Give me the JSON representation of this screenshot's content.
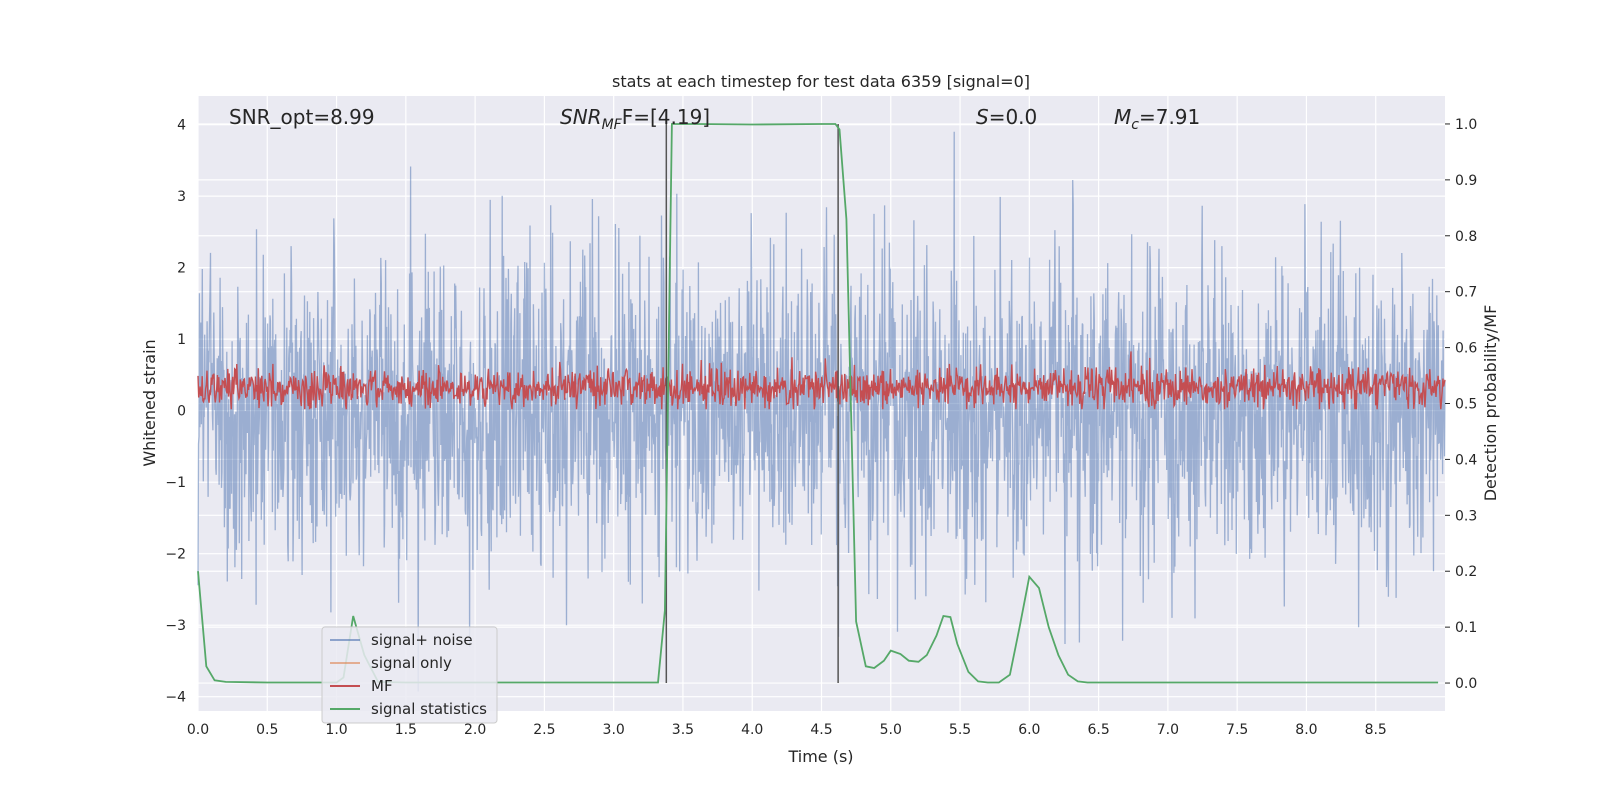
{
  "chart_data": {
    "type": "line",
    "title": "stats at each timestep for test data 6359 [signal=0]",
    "xlabel": "Time (s)",
    "ylabel": "Whitened strain",
    "ylabel_right": "Detection probability/MF",
    "xlim": [
      0.0,
      9.0
    ],
    "ylim": [
      -4.2,
      4.4
    ],
    "ylim_right": [
      -0.05,
      1.05
    ],
    "x_ticks": [
      "0.0",
      "0.5",
      "1.0",
      "1.5",
      "2.0",
      "2.5",
      "3.0",
      "3.5",
      "4.0",
      "4.5",
      "5.0",
      "5.5",
      "6.0",
      "6.5",
      "7.0",
      "7.5",
      "8.0",
      "8.5"
    ],
    "y_ticks": [
      "4",
      "3",
      "2",
      "1",
      "0",
      "−1",
      "−2",
      "−3",
      "−4"
    ],
    "y_ticks_right": [
      "1.0",
      "0.9",
      "0.8",
      "0.7",
      "0.6",
      "0.5",
      "0.4",
      "0.3",
      "0.2",
      "0.1",
      "0.0"
    ],
    "grid": true,
    "legend_position": "lower-left",
    "annotations": {
      "snr_opt": "SNR_opt=8.99",
      "snr_mf_main": "SNR",
      "snr_mf_sub": "MF",
      "snr_mf_rest": "F=[4.19]",
      "s_main": "S",
      "s_rest": "=0.0",
      "mc_main": "M",
      "mc_sub": "c",
      "mc_rest": "=7.91"
    },
    "vertical_markers": [
      3.38,
      4.62
    ],
    "series": [
      {
        "name": "signal+ noise",
        "color": "#4c72b0",
        "note_range": [
          -4.0,
          4.0
        ]
      },
      {
        "name": "signal only",
        "color": "#dd8452"
      },
      {
        "name": "MF",
        "color": "#c44e52"
      },
      {
        "name": "signal statistics",
        "color": "#55a868",
        "x": [
          0.0,
          0.06,
          0.12,
          0.2,
          0.5,
          1.0,
          1.05,
          1.12,
          1.2,
          1.3,
          1.5,
          2.0,
          3.0,
          3.32,
          3.37,
          3.42,
          3.46,
          3.6,
          4.0,
          4.5,
          4.6,
          4.63,
          4.68,
          4.75,
          4.82,
          4.88,
          4.95,
          5.0,
          5.07,
          5.13,
          5.2,
          5.26,
          5.33,
          5.38,
          5.43,
          5.48,
          5.56,
          5.63,
          5.7,
          5.78,
          5.86,
          5.93,
          6.0,
          6.07,
          6.14,
          6.21,
          6.28,
          6.35,
          6.42,
          7.0,
          8.0,
          8.95
        ],
        "values": [
          0.2,
          0.03,
          0.005,
          0.002,
          0.001,
          0.001,
          0.01,
          0.12,
          0.05,
          0.002,
          0.001,
          0.001,
          0.001,
          0.001,
          0.13,
          1.0,
          1.0,
          1.0,
          0.999,
          1.0,
          1.0,
          0.99,
          0.83,
          0.11,
          0.03,
          0.027,
          0.04,
          0.058,
          0.052,
          0.04,
          0.038,
          0.05,
          0.085,
          0.12,
          0.118,
          0.07,
          0.02,
          0.003,
          0.001,
          0.001,
          0.015,
          0.1,
          0.19,
          0.17,
          0.1,
          0.05,
          0.015,
          0.003,
          0.001,
          0.001,
          0.001,
          0.001
        ]
      }
    ]
  }
}
